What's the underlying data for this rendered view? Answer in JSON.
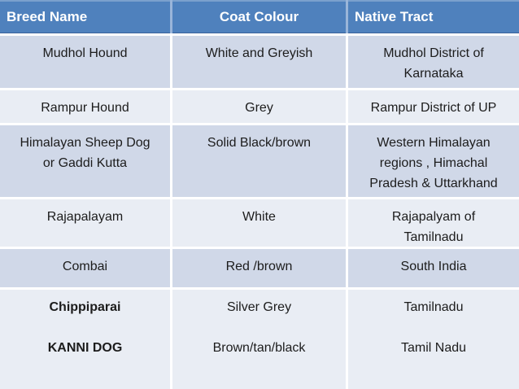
{
  "colors": {
    "header-bg": "#4F81BD",
    "header-text": "#FFFFFF",
    "band-dark": "#D0D8E8",
    "band-light": "#E9EDF4",
    "divider": "#FFFFFF",
    "body-text": "#1C1C1C"
  },
  "table": {
    "headers": {
      "breed": "Breed Name",
      "coat": "Coat Colour",
      "tract": "Native Tract"
    },
    "rows": [
      {
        "breed": "Mudhol Hound",
        "coat": "White and Greyish",
        "tract": "Mudhol District of\nKarnataka"
      },
      {
        "breed": "Rampur Hound",
        "coat": "Grey",
        "tract": "Rampur District of UP"
      },
      {
        "breed": "Himalayan Sheep Dog\nor Gaddi Kutta",
        "coat": "Solid Black/brown",
        "tract": "Western Himalayan\nregions , Himachal\nPradesh & Uttarkhand"
      },
      {
        "breed": "Rajapalayam",
        "coat": "White",
        "tract": "Rajapalyam of\nTamilnadu"
      },
      {
        "breed": "Combai",
        "coat": "Red /brown",
        "tract": "South India"
      },
      {
        "breed": "Chippiparai\n\nKANNI DOG",
        "coat": "Silver Grey\n\nBrown/tan/black",
        "tract": "Tamilnadu\n\nTamil Nadu"
      }
    ]
  }
}
